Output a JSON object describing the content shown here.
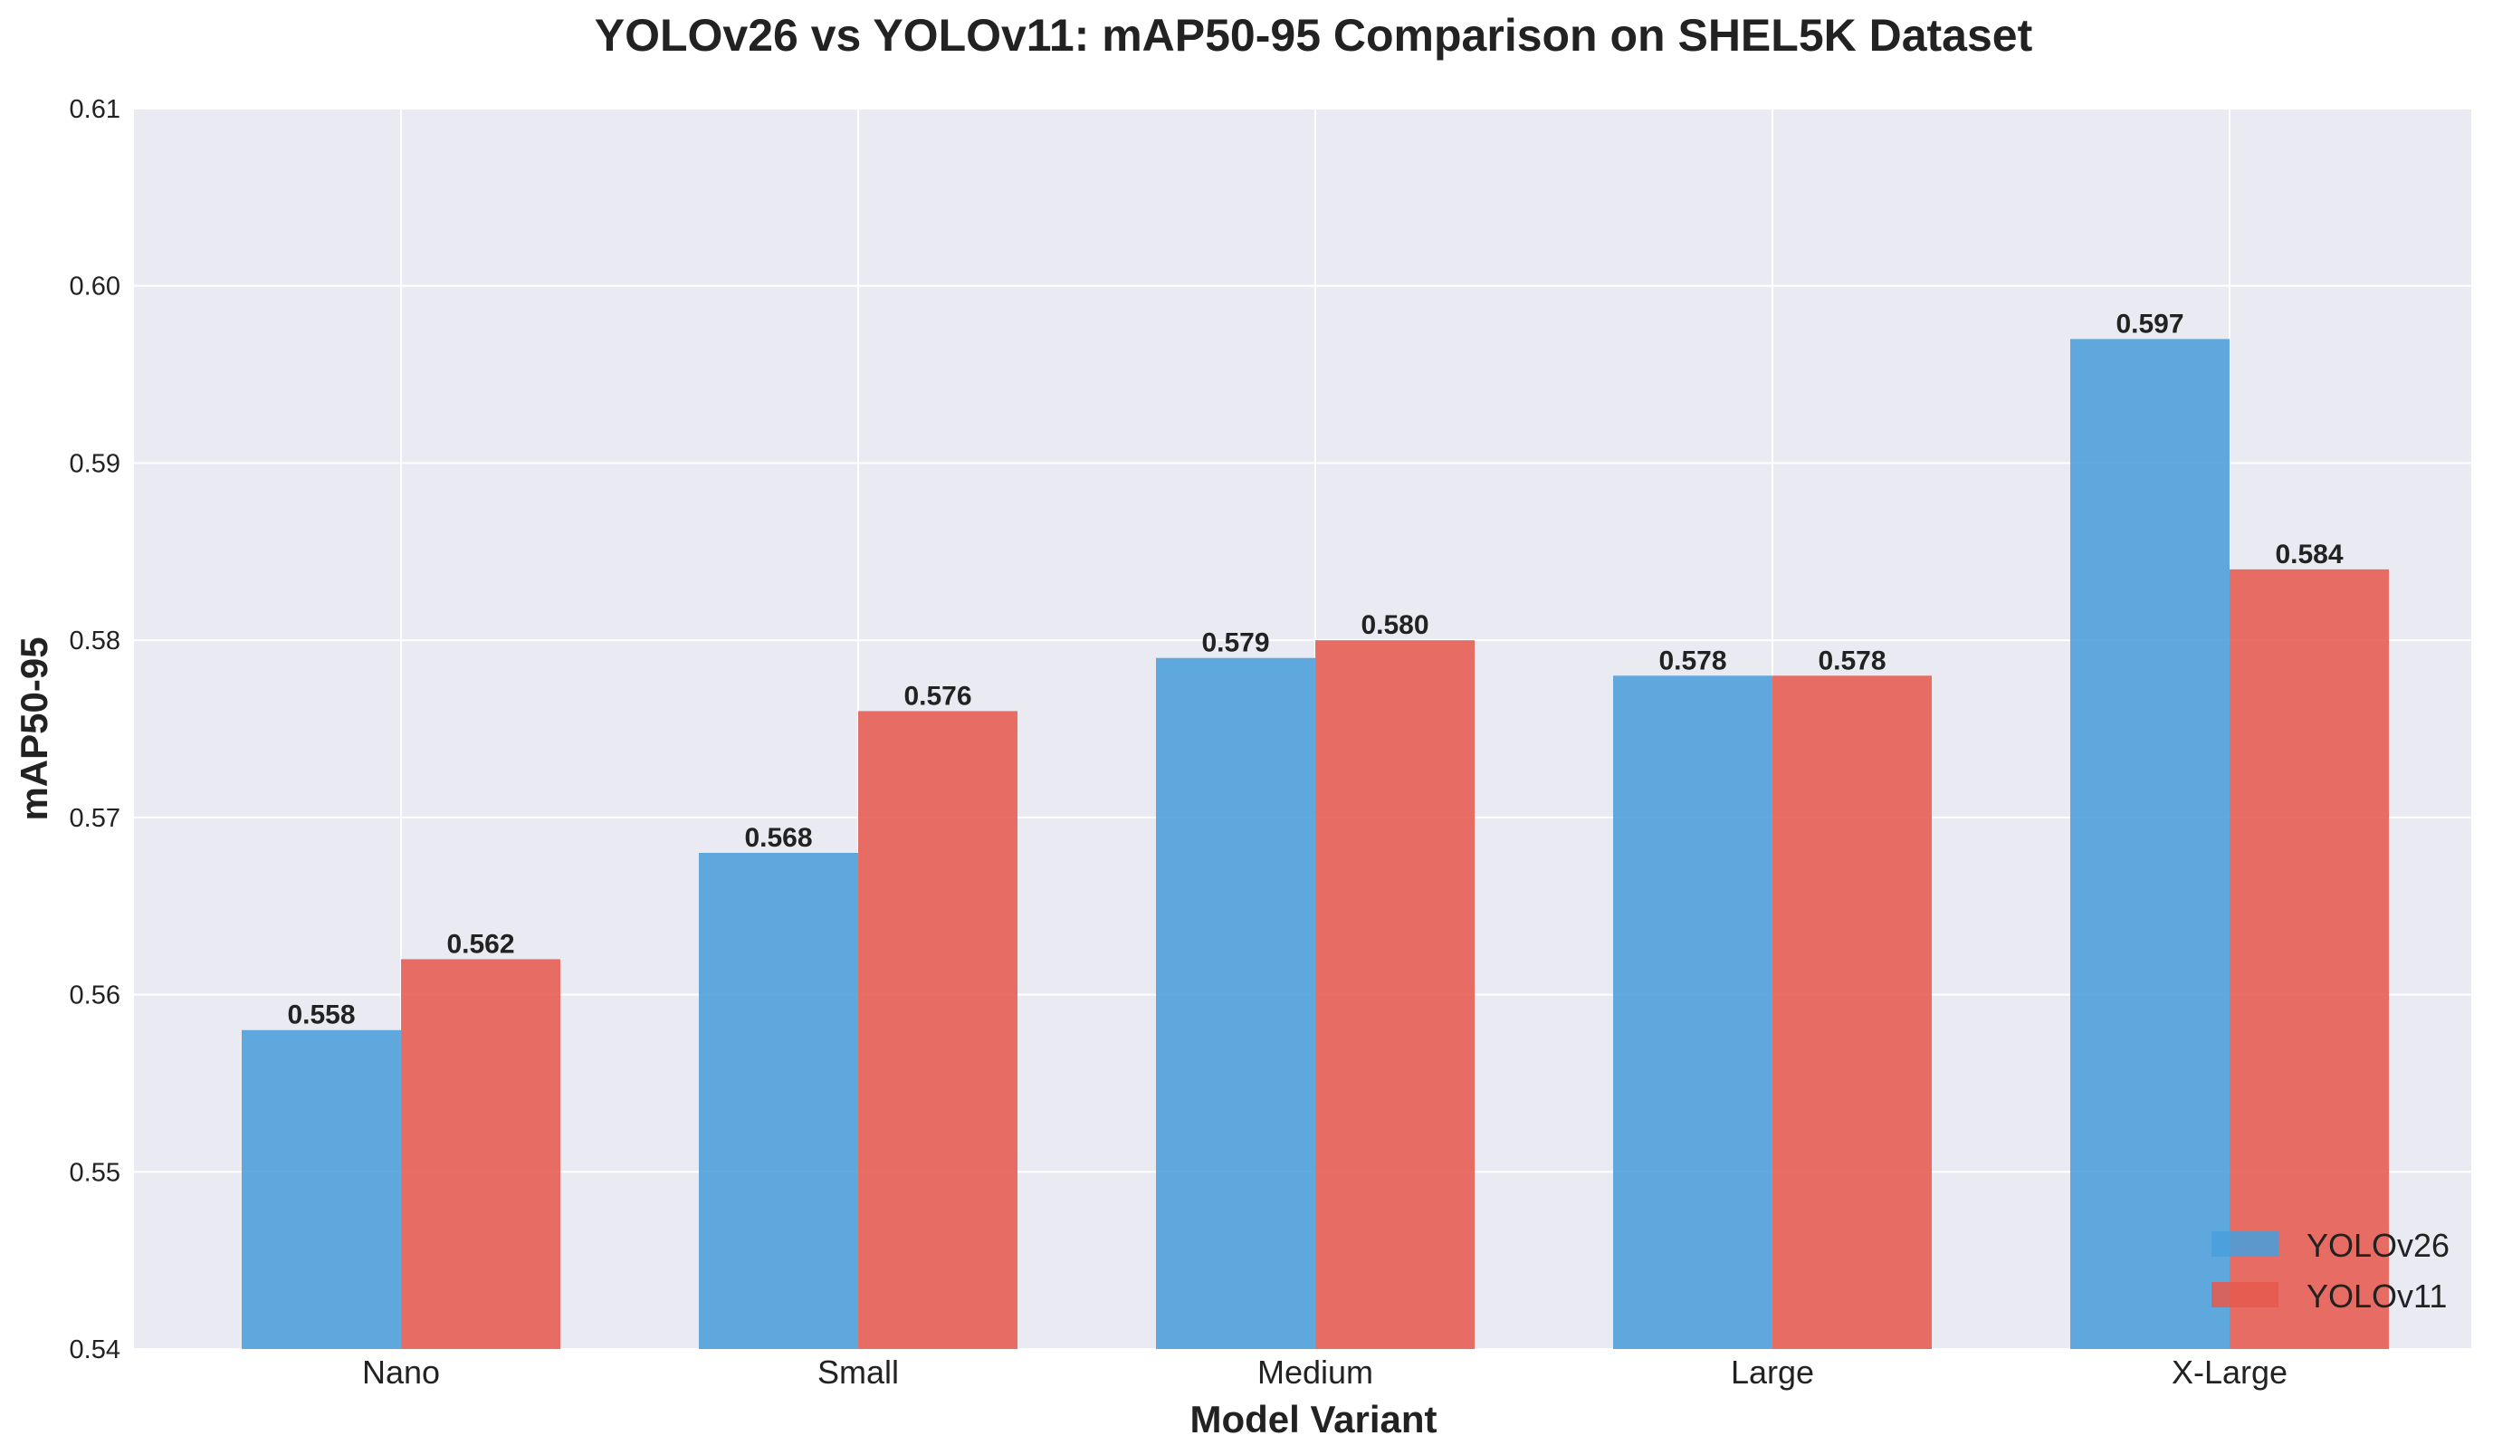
{
  "chart_data": {
    "type": "bar",
    "title": "YOLOv26 vs YOLOv11: mAP50-95 Comparison on SHEL5K Dataset",
    "xlabel": "Model Variant",
    "ylabel": "mAP50-95",
    "categories": [
      "Nano",
      "Small",
      "Medium",
      "Large",
      "X-Large"
    ],
    "series": [
      {
        "name": "YOLOv26",
        "values": [
          0.558,
          0.568,
          0.579,
          0.578,
          0.597
        ],
        "labels": [
          "0.558",
          "0.568",
          "0.579",
          "0.578",
          "0.597"
        ],
        "color": "#4a9edb"
      },
      {
        "name": "YOLOv11",
        "values": [
          0.562,
          0.576,
          0.58,
          0.578,
          0.584
        ],
        "labels": [
          "0.562",
          "0.576",
          "0.580",
          "0.578",
          "0.584"
        ],
        "color": "#e65a4f"
      }
    ],
    "ylim": [
      0.54,
      0.61
    ],
    "yticks": [
      "0.54",
      "0.55",
      "0.56",
      "0.57",
      "0.58",
      "0.59",
      "0.60",
      "0.61"
    ],
    "grid": true,
    "legend_position": "bottom-right",
    "background_color": "#eaeaf2"
  }
}
